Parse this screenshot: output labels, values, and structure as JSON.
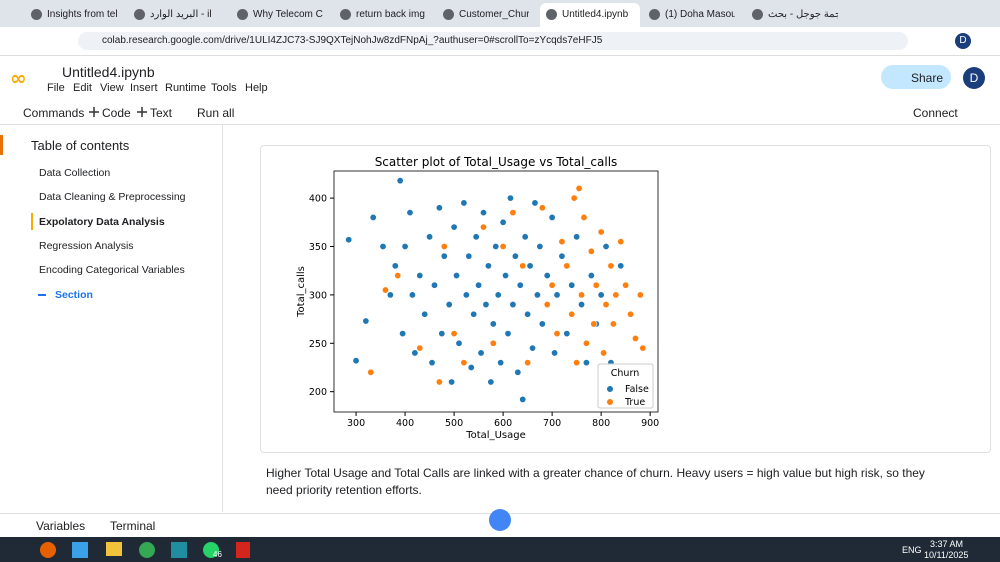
{
  "browser": {
    "tabs": [
      "Insights from tel",
      "البريد الوارد - il",
      "Why Telecom Cu",
      "return back img",
      "Customer_Churn",
      "Untitled4.ipynb",
      "(1) Doha Masou",
      "ترجمة جوجل - بحث"
    ],
    "url": "colab.research.google.com/drive/1ULI4ZJC73-SJ9QXTejNohJw8zdFNpAj_?authuser=0#scrollTo=zYcqds7eHFJ5",
    "profile": "D"
  },
  "colab": {
    "notebook": "Untitled4.ipynb",
    "menu": [
      "File",
      "Edit",
      "View",
      "Insert",
      "Runtime",
      "Tools",
      "Help"
    ],
    "share": "Share",
    "avatar": "D",
    "toolbar": {
      "commands": "Commands",
      "code": "Code",
      "text": "Text",
      "run_all": "Run all",
      "connect": "Connect"
    }
  },
  "toc": {
    "title": "Table of contents",
    "items": [
      "Data Collection",
      "Data Cleaning & Preprocessing",
      "Expolatory Data Analysis",
      "Regression Analysis",
      "Encoding Categorical Variables"
    ],
    "active": 2,
    "add": "Section"
  },
  "chart_data": {
    "type": "scatter",
    "title": "Scatter plot of Total_Usage vs Total_calls",
    "x_label": "Total_Usage",
    "y_label": "Total_calls",
    "xlim": [
      255,
      916
    ],
    "ylim": [
      179,
      428
    ],
    "xticks": [
      300,
      400,
      500,
      600,
      700,
      800,
      900
    ],
    "yticks": [
      200,
      250,
      300,
      350,
      400
    ],
    "legend_title": "Churn",
    "legend_position": "lower right",
    "series": [
      {
        "name": "False",
        "color": "#1f77b4",
        "x": [
          390,
          285,
          300,
          320,
          335,
          355,
          370,
          380,
          395,
          400,
          410,
          415,
          420,
          430,
          440,
          450,
          455,
          460,
          470,
          475,
          480,
          490,
          495,
          500,
          505,
          510,
          520,
          525,
          530,
          535,
          540,
          545,
          550,
          555,
          560,
          565,
          570,
          575,
          580,
          585,
          590,
          595,
          600,
          605,
          610,
          615,
          620,
          625,
          630,
          635,
          640,
          645,
          650,
          655,
          660,
          665,
          670,
          675,
          680,
          690,
          700,
          705,
          710,
          720,
          730,
          740,
          750,
          760,
          770,
          780,
          790,
          800,
          810,
          820,
          840
        ],
        "values": [
          418,
          357,
          232,
          273,
          380,
          350,
          300,
          330,
          260,
          350,
          385,
          300,
          240,
          320,
          280,
          360,
          230,
          310,
          390,
          260,
          340,
          290,
          210,
          370,
          320,
          250,
          395,
          300,
          340,
          225,
          280,
          360,
          310,
          240,
          385,
          290,
          330,
          210,
          270,
          350,
          300,
          230,
          375,
          320,
          260,
          400,
          290,
          340,
          220,
          310,
          192,
          360,
          280,
          330,
          245,
          395,
          300,
          350,
          270,
          320,
          380,
          240,
          300,
          340,
          260,
          310,
          360,
          290,
          230,
          320,
          270,
          300,
          350,
          230,
          330
        ]
      },
      {
        "name": "True",
        "color": "#ff7f0e",
        "x": [
          330,
          360,
          385,
          430,
          470,
          480,
          500,
          520,
          560,
          580,
          600,
          620,
          650,
          680,
          700,
          710,
          720,
          730,
          740,
          745,
          750,
          755,
          760,
          765,
          770,
          780,
          785,
          790,
          800,
          805,
          810,
          820,
          825,
          830,
          840,
          850,
          860,
          870,
          880,
          885,
          640,
          690
        ],
        "values": [
          220,
          305,
          320,
          245,
          210,
          350,
          260,
          230,
          370,
          250,
          350,
          385,
          230,
          390,
          310,
          260,
          355,
          330,
          280,
          400,
          230,
          410,
          300,
          380,
          250,
          345,
          270,
          310,
          365,
          240,
          290,
          330,
          270,
          300,
          355,
          310,
          280,
          255,
          300,
          245,
          330,
          290
        ]
      }
    ]
  },
  "text_cell": "Higher Total Usage and Total Calls are linked with a greater chance of churn. Heavy users = high value but high risk, so they need priority retention efforts.",
  "bottom": {
    "variables": "Variables",
    "terminal": "Terminal"
  },
  "taskbar": {
    "badge": "46",
    "lang": "ENG",
    "time": "3:37 AM",
    "date": "10/11/2025"
  }
}
